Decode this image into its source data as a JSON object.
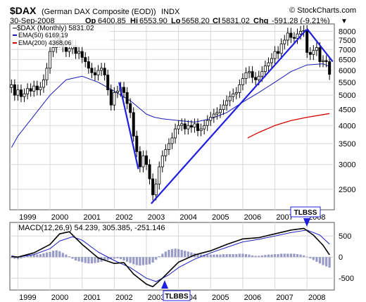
{
  "header": {
    "symbol": "$DAX",
    "name": "(German DAX Composite (EOD))",
    "exchange": "INDX",
    "watermark": "© StockCharts.com",
    "date": "30-Sep-2008",
    "quote": {
      "op_label": "Op",
      "op": "6400.85",
      "hi_label": "Hi",
      "hi": "6553.90",
      "lo_label": "Lo",
      "lo": "5658.20",
      "cl_label": "Cl",
      "cl": "5831.02",
      "chg_label": "Chg",
      "chg": "-591.28 (-9.21%)",
      "arrow": "▼"
    }
  },
  "chart_data": [
    {
      "type": "candlestick",
      "legend": [
        {
          "text": "$DAX (Monthly) 5831.02",
          "color": "#000000"
        },
        {
          "text": "EMA(50) 6169.19",
          "color": "#1a1ab8"
        },
        {
          "text": "EMA(200) 4368.06",
          "color": "#d40000"
        }
      ],
      "x_ticks": [
        "1999",
        "2000",
        "2001",
        "2002",
        "2003",
        "2004",
        "2005",
        "2006",
        "2007",
        "2008"
      ],
      "y_ticks": [
        2500,
        3000,
        3500,
        4000,
        4500,
        5000,
        5500,
        6000,
        6500,
        7000,
        7500,
        8000
      ],
      "y_scale": "log",
      "ylim": [
        2150,
        8450
      ],
      "xlim": [
        1998.75,
        2008.85
      ],
      "grid": true,
      "closes": [
        [
          1998.8,
          5400
        ],
        [
          1998.9,
          5000
        ],
        [
          1999.0,
          5200
        ],
        [
          1999.1,
          4950
        ],
        [
          1999.2,
          5050
        ],
        [
          1999.3,
          5250
        ],
        [
          1999.4,
          5150
        ],
        [
          1999.5,
          5350
        ],
        [
          1999.6,
          5200
        ],
        [
          1999.7,
          5300
        ],
        [
          1999.8,
          5600
        ],
        [
          1999.9,
          6100
        ],
        [
          2000.0,
          6900
        ],
        [
          2000.1,
          7100
        ],
        [
          2000.2,
          7600
        ],
        [
          2000.3,
          7400
        ],
        [
          2000.4,
          7150
        ],
        [
          2000.5,
          6900
        ],
        [
          2000.6,
          7050
        ],
        [
          2000.7,
          7200
        ],
        [
          2000.8,
          6800
        ],
        [
          2000.9,
          6900
        ],
        [
          2001.0,
          6600
        ],
        [
          2001.1,
          6400
        ],
        [
          2001.2,
          6100
        ],
        [
          2001.3,
          5900
        ],
        [
          2001.4,
          5800
        ],
        [
          2001.5,
          6000
        ],
        [
          2001.6,
          6100
        ],
        [
          2001.7,
          5800
        ],
        [
          2001.8,
          5200
        ],
        [
          2001.9,
          4650
        ],
        [
          2002.0,
          5100
        ],
        [
          2002.1,
          5150
        ],
        [
          2002.2,
          5300
        ],
        [
          2002.3,
          5100
        ],
        [
          2002.4,
          4700
        ],
        [
          2002.5,
          4400
        ],
        [
          2002.6,
          3700
        ],
        [
          2002.7,
          3300
        ],
        [
          2002.8,
          2950
        ],
        [
          2002.9,
          3200
        ],
        [
          2003.0,
          3000
        ],
        [
          2003.1,
          2700
        ],
        [
          2003.2,
          2400
        ],
        [
          2003.3,
          2600
        ],
        [
          2003.4,
          2950
        ],
        [
          2003.5,
          3200
        ],
        [
          2003.6,
          3350
        ],
        [
          2003.7,
          3500
        ],
        [
          2003.8,
          3650
        ],
        [
          2003.9,
          3900
        ],
        [
          2004.0,
          4000
        ],
        [
          2004.1,
          4050
        ],
        [
          2004.2,
          3900
        ],
        [
          2004.3,
          4000
        ],
        [
          2004.4,
          3950
        ],
        [
          2004.5,
          4050
        ],
        [
          2004.6,
          3850
        ],
        [
          2004.7,
          3900
        ],
        [
          2004.8,
          4000
        ],
        [
          2004.9,
          4150
        ],
        [
          2005.0,
          4250
        ],
        [
          2005.1,
          4350
        ],
        [
          2005.2,
          4400
        ],
        [
          2005.3,
          4500
        ],
        [
          2005.4,
          4650
        ],
        [
          2005.5,
          4800
        ],
        [
          2005.6,
          4950
        ],
        [
          2005.7,
          5050
        ],
        [
          2005.8,
          5100
        ],
        [
          2005.9,
          5400
        ],
        [
          2006.0,
          5650
        ],
        [
          2006.1,
          5900
        ],
        [
          2006.2,
          5950
        ],
        [
          2006.3,
          5700
        ],
        [
          2006.4,
          5600
        ],
        [
          2006.5,
          5750
        ],
        [
          2006.6,
          5950
        ],
        [
          2006.7,
          6200
        ],
        [
          2006.8,
          6350
        ],
        [
          2006.9,
          6550
        ],
        [
          2007.0,
          6900
        ],
        [
          2007.1,
          6800
        ],
        [
          2007.2,
          7300
        ],
        [
          2007.3,
          7500
        ],
        [
          2007.4,
          7900
        ],
        [
          2007.5,
          7650
        ],
        [
          2007.6,
          7600
        ],
        [
          2007.7,
          7850
        ],
        [
          2007.8,
          8000
        ],
        [
          2007.9,
          8050
        ],
        [
          2008.0,
          6850
        ],
        [
          2008.1,
          6750
        ],
        [
          2008.2,
          6950
        ],
        [
          2008.3,
          7100
        ],
        [
          2008.4,
          6400
        ],
        [
          2008.5,
          6450
        ],
        [
          2008.6,
          6400
        ],
        [
          2008.7,
          5831
        ]
      ],
      "ema50": [
        [
          1998.8,
          3400
        ],
        [
          1999.0,
          3700
        ],
        [
          1999.5,
          4300
        ],
        [
          2000.0,
          5000
        ],
        [
          2000.5,
          5600
        ],
        [
          2001.0,
          5750
        ],
        [
          2001.5,
          5500
        ],
        [
          2002.0,
          5150
        ],
        [
          2002.5,
          4800
        ],
        [
          2003.0,
          4350
        ],
        [
          2003.25,
          4250
        ],
        [
          2003.5,
          4200
        ],
        [
          2004.0,
          4150
        ],
        [
          2004.5,
          4100
        ],
        [
          2005.0,
          4200
        ],
        [
          2005.5,
          4400
        ],
        [
          2006.0,
          4750
        ],
        [
          2006.5,
          5100
        ],
        [
          2007.0,
          5500
        ],
        [
          2007.5,
          5950
        ],
        [
          2008.0,
          6250
        ],
        [
          2008.5,
          6300
        ],
        [
          2008.7,
          6169
        ]
      ],
      "ema200": [
        [
          2006.15,
          3650
        ],
        [
          2006.5,
          3800
        ],
        [
          2007.0,
          4000
        ],
        [
          2007.5,
          4150
        ],
        [
          2008.0,
          4250
        ],
        [
          2008.7,
          4368
        ]
      ],
      "trendlines": [
        [
          [
            2002.15,
            5500
          ],
          [
            2002.75,
            2900
          ]
        ],
        [
          [
            2003.15,
            2250
          ],
          [
            2007.98,
            8100
          ]
        ],
        [
          [
            2008.0,
            8150
          ],
          [
            2008.8,
            6400
          ]
        ]
      ]
    },
    {
      "type": "macd",
      "label": "MACD(12,26,9) 54.239, 305.385, -251.146",
      "y_ticks": [
        500,
        0,
        -500
      ],
      "ylim": [
        -780,
        820
      ],
      "xlim": [
        1998.75,
        2008.85
      ],
      "x_ticks": [
        "1999",
        "2000",
        "2001",
        "2002",
        "2003",
        "2004",
        "2005",
        "2006",
        "2007",
        "2008"
      ],
      "macd": [
        [
          1998.8,
          10
        ],
        [
          1999.0,
          0
        ],
        [
          1999.5,
          100
        ],
        [
          2000.0,
          300
        ],
        [
          2000.3,
          550
        ],
        [
          2000.6,
          600
        ],
        [
          2001.0,
          300
        ],
        [
          2001.5,
          -20
        ],
        [
          2002.0,
          -150
        ],
        [
          2002.3,
          -130
        ],
        [
          2002.6,
          -400
        ],
        [
          2003.0,
          -640
        ],
        [
          2003.2,
          -700
        ],
        [
          2003.5,
          -500
        ],
        [
          2004.0,
          -120
        ],
        [
          2004.5,
          50
        ],
        [
          2005.0,
          150
        ],
        [
          2005.5,
          300
        ],
        [
          2006.0,
          430
        ],
        [
          2006.5,
          460
        ],
        [
          2007.0,
          550
        ],
        [
          2007.5,
          640
        ],
        [
          2007.9,
          680
        ],
        [
          2008.2,
          520
        ],
        [
          2008.5,
          280
        ],
        [
          2008.7,
          54
        ]
      ],
      "signal": [
        [
          1998.8,
          30
        ],
        [
          1999.0,
          0
        ],
        [
          1999.5,
          60
        ],
        [
          2000.0,
          200
        ],
        [
          2000.3,
          380
        ],
        [
          2000.7,
          480
        ],
        [
          2001.0,
          400
        ],
        [
          2001.5,
          120
        ],
        [
          2002.0,
          -80
        ],
        [
          2002.5,
          -250
        ],
        [
          2003.0,
          -500
        ],
        [
          2003.3,
          -580
        ],
        [
          2003.7,
          -420
        ],
        [
          2004.0,
          -250
        ],
        [
          2004.5,
          -50
        ],
        [
          2005.0,
          100
        ],
        [
          2005.5,
          230
        ],
        [
          2006.0,
          360
        ],
        [
          2006.5,
          420
        ],
        [
          2007.0,
          500
        ],
        [
          2007.5,
          580
        ],
        [
          2008.0,
          640
        ],
        [
          2008.4,
          520
        ],
        [
          2008.7,
          305
        ]
      ],
      "histogram": [
        [
          1998.8,
          -20
        ],
        [
          1998.9,
          -40
        ],
        [
          1999.0,
          -50
        ],
        [
          1999.1,
          -30
        ],
        [
          1999.2,
          0
        ],
        [
          1999.3,
          30
        ],
        [
          1999.4,
          50
        ],
        [
          1999.5,
          60
        ],
        [
          1999.6,
          60
        ],
        [
          1999.7,
          70
        ],
        [
          1999.8,
          90
        ],
        [
          1999.9,
          110
        ],
        [
          2000.0,
          120
        ],
        [
          2000.1,
          150
        ],
        [
          2000.2,
          160
        ],
        [
          2000.3,
          140
        ],
        [
          2000.4,
          100
        ],
        [
          2000.5,
          60
        ],
        [
          2000.6,
          20
        ],
        [
          2000.7,
          -40
        ],
        [
          2000.8,
          -80
        ],
        [
          2000.9,
          -100
        ],
        [
          2001.0,
          -120
        ],
        [
          2001.1,
          -140
        ],
        [
          2001.2,
          -150
        ],
        [
          2001.3,
          -150
        ],
        [
          2001.4,
          -140
        ],
        [
          2001.5,
          -130
        ],
        [
          2001.6,
          -110
        ],
        [
          2001.7,
          -90
        ],
        [
          2001.8,
          -70
        ],
        [
          2001.9,
          -50
        ],
        [
          2002.0,
          -40
        ],
        [
          2002.1,
          -30
        ],
        [
          2002.2,
          -50
        ],
        [
          2002.3,
          -80
        ],
        [
          2002.4,
          -110
        ],
        [
          2002.5,
          -140
        ],
        [
          2002.6,
          -170
        ],
        [
          2002.7,
          -190
        ],
        [
          2002.8,
          -200
        ],
        [
          2002.9,
          -190
        ],
        [
          2003.0,
          -180
        ],
        [
          2003.1,
          -170
        ],
        [
          2003.2,
          -130
        ],
        [
          2003.3,
          -60
        ],
        [
          2003.4,
          20
        ],
        [
          2003.5,
          80
        ],
        [
          2003.6,
          130
        ],
        [
          2003.7,
          170
        ],
        [
          2003.8,
          190
        ],
        [
          2003.9,
          200
        ],
        [
          2004.0,
          190
        ],
        [
          2004.1,
          170
        ],
        [
          2004.2,
          150
        ],
        [
          2004.3,
          130
        ],
        [
          2004.4,
          110
        ],
        [
          2004.5,
          90
        ],
        [
          2004.6,
          70
        ],
        [
          2004.7,
          60
        ],
        [
          2004.8,
          60
        ],
        [
          2004.9,
          60
        ],
        [
          2005.0,
          60
        ],
        [
          2005.1,
          60
        ],
        [
          2005.2,
          60
        ],
        [
          2005.3,
          60
        ],
        [
          2005.4,
          70
        ],
        [
          2005.5,
          70
        ],
        [
          2005.6,
          70
        ],
        [
          2005.7,
          70
        ],
        [
          2005.8,
          70
        ],
        [
          2005.9,
          80
        ],
        [
          2006.0,
          80
        ],
        [
          2006.1,
          70
        ],
        [
          2006.2,
          60
        ],
        [
          2006.3,
          40
        ],
        [
          2006.4,
          30
        ],
        [
          2006.5,
          30
        ],
        [
          2006.6,
          40
        ],
        [
          2006.7,
          50
        ],
        [
          2006.8,
          60
        ],
        [
          2006.9,
          60
        ],
        [
          2007.0,
          70
        ],
        [
          2007.1,
          70
        ],
        [
          2007.2,
          80
        ],
        [
          2007.3,
          80
        ],
        [
          2007.4,
          80
        ],
        [
          2007.5,
          80
        ],
        [
          2007.6,
          80
        ],
        [
          2007.7,
          70
        ],
        [
          2007.8,
          60
        ],
        [
          2007.9,
          40
        ],
        [
          2008.0,
          10
        ],
        [
          2008.1,
          -30
        ],
        [
          2008.2,
          -70
        ],
        [
          2008.3,
          -110
        ],
        [
          2008.4,
          -150
        ],
        [
          2008.5,
          -190
        ],
        [
          2008.6,
          -220
        ],
        [
          2008.7,
          -251
        ]
      ]
    }
  ],
  "annotations": {
    "sell_label": "TLBSS",
    "buy_label": "TLBBS"
  },
  "colors": {
    "price": "#000000",
    "ema50": "#1a1ab8",
    "ema200": "#d40000",
    "trend": "#1f1fe0",
    "macd": "#000000",
    "signal": "#2020c0",
    "histogram": "#9a9ac8",
    "grid": "#d8d8d8",
    "arrow": "#1f1fe0"
  }
}
